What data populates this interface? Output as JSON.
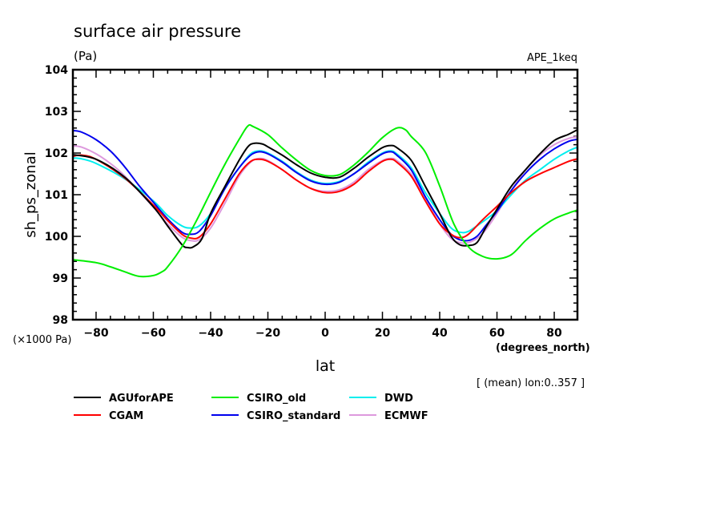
{
  "chart_data": {
    "type": "line",
    "title": "surface air pressure",
    "units": "(Pa)",
    "experiment": "APE_1keq",
    "ylabel": "sh_ps_zonal",
    "y_scale_note": "(×1000 Pa)",
    "xlabel": "lat",
    "x_units": "(degrees_north)",
    "footnote": "[ (mean) lon:0..357 ]",
    "xlim": [
      -88.1,
      88.1
    ],
    "ylim": [
      98,
      104
    ],
    "x_ticks": [
      -80,
      -60,
      -40,
      -20,
      0,
      20,
      40,
      60,
      80
    ],
    "x_tick_labels": [
      "−80",
      "−60",
      "−40",
      "−20",
      "0",
      "20",
      "40",
      "60",
      "80"
    ],
    "y_ticks": [
      98,
      99,
      100,
      101,
      102,
      103,
      104
    ],
    "y_tick_labels": [
      "98",
      "99",
      "100",
      "101",
      "102",
      "103",
      "104"
    ],
    "grid": false,
    "legend_placement": "bottom",
    "series": [
      {
        "name": "AGUforAPE",
        "color": "#000000",
        "points": [
          [
            -88.1,
            101.96
          ],
          [
            -80,
            101.85
          ],
          [
            -70,
            101.42
          ],
          [
            -60,
            100.71
          ],
          [
            -55,
            100.25
          ],
          [
            -50,
            99.8
          ],
          [
            -48,
            99.73
          ],
          [
            -46,
            99.75
          ],
          [
            -43,
            99.95
          ],
          [
            -40,
            100.55
          ],
          [
            -35,
            101.2
          ],
          [
            -30,
            101.83
          ],
          [
            -27,
            102.15
          ],
          [
            -25,
            102.23
          ],
          [
            -22,
            102.22
          ],
          [
            -20,
            102.15
          ],
          [
            -15,
            101.95
          ],
          [
            -10,
            101.72
          ],
          [
            -5,
            101.52
          ],
          [
            0,
            101.42
          ],
          [
            5,
            101.42
          ],
          [
            10,
            101.63
          ],
          [
            15,
            101.9
          ],
          [
            20,
            102.13
          ],
          [
            23,
            102.18
          ],
          [
            25,
            102.13
          ],
          [
            30,
            101.83
          ],
          [
            35,
            101.2
          ],
          [
            40,
            100.55
          ],
          [
            44,
            100.0
          ],
          [
            47,
            99.8
          ],
          [
            50,
            99.78
          ],
          [
            53,
            99.85
          ],
          [
            56,
            100.2
          ],
          [
            60,
            100.65
          ],
          [
            65,
            101.2
          ],
          [
            70,
            101.6
          ],
          [
            75,
            101.98
          ],
          [
            80,
            102.3
          ],
          [
            85,
            102.45
          ],
          [
            88.1,
            102.56
          ]
        ]
      },
      {
        "name": "CGAM",
        "color": "#ff0000",
        "points": [
          [
            -88.1,
            101.92
          ],
          [
            -85,
            101.95
          ],
          [
            -80,
            101.85
          ],
          [
            -70,
            101.4
          ],
          [
            -60,
            100.75
          ],
          [
            -55,
            100.38
          ],
          [
            -50,
            100.05
          ],
          [
            -47,
            99.96
          ],
          [
            -44,
            99.98
          ],
          [
            -40,
            100.3
          ],
          [
            -35,
            100.9
          ],
          [
            -30,
            101.5
          ],
          [
            -26,
            101.8
          ],
          [
            -23,
            101.85
          ],
          [
            -20,
            101.8
          ],
          [
            -15,
            101.6
          ],
          [
            -10,
            101.35
          ],
          [
            -5,
            101.15
          ],
          [
            0,
            101.05
          ],
          [
            5,
            101.08
          ],
          [
            10,
            101.25
          ],
          [
            15,
            101.55
          ],
          [
            20,
            101.8
          ],
          [
            23,
            101.85
          ],
          [
            25,
            101.78
          ],
          [
            30,
            101.45
          ],
          [
            35,
            100.85
          ],
          [
            40,
            100.3
          ],
          [
            44,
            100.05
          ],
          [
            47,
            99.97
          ],
          [
            50,
            100.05
          ],
          [
            55,
            100.4
          ],
          [
            60,
            100.72
          ],
          [
            65,
            101.05
          ],
          [
            70,
            101.32
          ],
          [
            75,
            101.5
          ],
          [
            80,
            101.65
          ],
          [
            85,
            101.8
          ],
          [
            88.1,
            101.86
          ]
        ]
      },
      {
        "name": "CSIRO_old",
        "color": "#00ee00",
        "points": [
          [
            -88.1,
            99.44
          ],
          [
            -80,
            99.37
          ],
          [
            -75,
            99.27
          ],
          [
            -70,
            99.15
          ],
          [
            -65,
            99.04
          ],
          [
            -60,
            99.06
          ],
          [
            -57,
            99.15
          ],
          [
            -55,
            99.27
          ],
          [
            -50,
            99.75
          ],
          [
            -45,
            100.37
          ],
          [
            -40,
            101.06
          ],
          [
            -35,
            101.73
          ],
          [
            -30,
            102.33
          ],
          [
            -27,
            102.65
          ],
          [
            -25,
            102.63
          ],
          [
            -20,
            102.44
          ],
          [
            -15,
            102.12
          ],
          [
            -10,
            101.83
          ],
          [
            -5,
            101.58
          ],
          [
            0,
            101.46
          ],
          [
            5,
            101.48
          ],
          [
            10,
            101.71
          ],
          [
            15,
            102.02
          ],
          [
            20,
            102.37
          ],
          [
            25,
            102.6
          ],
          [
            28,
            102.56
          ],
          [
            30,
            102.4
          ],
          [
            35,
            102.02
          ],
          [
            40,
            101.21
          ],
          [
            45,
            100.29
          ],
          [
            50,
            99.75
          ],
          [
            55,
            99.52
          ],
          [
            60,
            99.46
          ],
          [
            65,
            99.56
          ],
          [
            70,
            99.9
          ],
          [
            75,
            100.19
          ],
          [
            80,
            100.42
          ],
          [
            85,
            100.56
          ],
          [
            88.1,
            100.63
          ]
        ]
      },
      {
        "name": "CSIRO_standard",
        "color": "#0000ee",
        "points": [
          [
            -88.1,
            102.54
          ],
          [
            -85,
            102.5
          ],
          [
            -80,
            102.32
          ],
          [
            -75,
            102.05
          ],
          [
            -70,
            101.67
          ],
          [
            -65,
            101.22
          ],
          [
            -60,
            100.82
          ],
          [
            -55,
            100.42
          ],
          [
            -50,
            100.1
          ],
          [
            -47,
            100.05
          ],
          [
            -44,
            100.12
          ],
          [
            -40,
            100.5
          ],
          [
            -35,
            101.15
          ],
          [
            -30,
            101.65
          ],
          [
            -26,
            101.95
          ],
          [
            -23,
            102.03
          ],
          [
            -20,
            101.98
          ],
          [
            -15,
            101.78
          ],
          [
            -10,
            101.53
          ],
          [
            -5,
            101.33
          ],
          [
            0,
            101.25
          ],
          [
            5,
            101.3
          ],
          [
            10,
            101.5
          ],
          [
            15,
            101.75
          ],
          [
            20,
            101.98
          ],
          [
            23,
            102.03
          ],
          [
            25,
            101.95
          ],
          [
            30,
            101.6
          ],
          [
            35,
            100.95
          ],
          [
            40,
            100.4
          ],
          [
            44,
            100.05
          ],
          [
            47,
            99.92
          ],
          [
            50,
            99.9
          ],
          [
            53,
            100.0
          ],
          [
            56,
            100.25
          ],
          [
            60,
            100.6
          ],
          [
            65,
            101.1
          ],
          [
            70,
            101.52
          ],
          [
            75,
            101.85
          ],
          [
            80,
            102.1
          ],
          [
            85,
            102.28
          ],
          [
            88.1,
            102.33
          ]
        ]
      },
      {
        "name": "DWD",
        "color": "#00eeee",
        "points": [
          [
            -88.1,
            101.88
          ],
          [
            -85,
            101.86
          ],
          [
            -80,
            101.75
          ],
          [
            -70,
            101.38
          ],
          [
            -60,
            100.85
          ],
          [
            -55,
            100.5
          ],
          [
            -50,
            100.25
          ],
          [
            -47,
            100.2
          ],
          [
            -44,
            100.25
          ],
          [
            -40,
            100.55
          ],
          [
            -35,
            101.15
          ],
          [
            -30,
            101.65
          ],
          [
            -26,
            101.98
          ],
          [
            -23,
            102.05
          ],
          [
            -20,
            102.0
          ],
          [
            -15,
            101.8
          ],
          [
            -10,
            101.55
          ],
          [
            -5,
            101.35
          ],
          [
            0,
            101.27
          ],
          [
            5,
            101.32
          ],
          [
            10,
            101.5
          ],
          [
            15,
            101.78
          ],
          [
            20,
            102.0
          ],
          [
            23,
            102.05
          ],
          [
            25,
            101.98
          ],
          [
            30,
            101.65
          ],
          [
            35,
            101.05
          ],
          [
            40,
            100.55
          ],
          [
            44,
            100.2
          ],
          [
            47,
            100.1
          ],
          [
            50,
            100.12
          ],
          [
            55,
            100.35
          ],
          [
            60,
            100.62
          ],
          [
            65,
            101.0
          ],
          [
            70,
            101.35
          ],
          [
            75,
            101.6
          ],
          [
            80,
            101.85
          ],
          [
            85,
            102.05
          ],
          [
            88.1,
            102.14
          ]
        ]
      },
      {
        "name": "ECMWF",
        "color": "#dd99dd",
        "points": [
          [
            -88.1,
            102.17
          ],
          [
            -85,
            102.14
          ],
          [
            -80,
            101.98
          ],
          [
            -75,
            101.75
          ],
          [
            -70,
            101.45
          ],
          [
            -60,
            100.7
          ],
          [
            -55,
            100.3
          ],
          [
            -50,
            99.98
          ],
          [
            -47,
            99.9
          ],
          [
            -44,
            99.92
          ],
          [
            -40,
            100.2
          ],
          [
            -35,
            100.8
          ],
          [
            -30,
            101.45
          ],
          [
            -26,
            101.78
          ],
          [
            -23,
            101.87
          ],
          [
            -20,
            101.82
          ],
          [
            -15,
            101.6
          ],
          [
            -10,
            101.35
          ],
          [
            -5,
            101.15
          ],
          [
            0,
            101.08
          ],
          [
            5,
            101.12
          ],
          [
            10,
            101.3
          ],
          [
            15,
            101.6
          ],
          [
            20,
            101.82
          ],
          [
            23,
            101.87
          ],
          [
            25,
            101.82
          ],
          [
            30,
            101.5
          ],
          [
            35,
            100.9
          ],
          [
            40,
            100.3
          ],
          [
            44,
            99.95
          ],
          [
            47,
            99.85
          ],
          [
            50,
            99.85
          ],
          [
            53,
            99.95
          ],
          [
            56,
            100.15
          ],
          [
            60,
            100.55
          ],
          [
            65,
            101.1
          ],
          [
            70,
            101.6
          ],
          [
            75,
            101.95
          ],
          [
            80,
            102.2
          ],
          [
            85,
            102.35
          ],
          [
            88.1,
            102.39
          ]
        ]
      }
    ]
  }
}
